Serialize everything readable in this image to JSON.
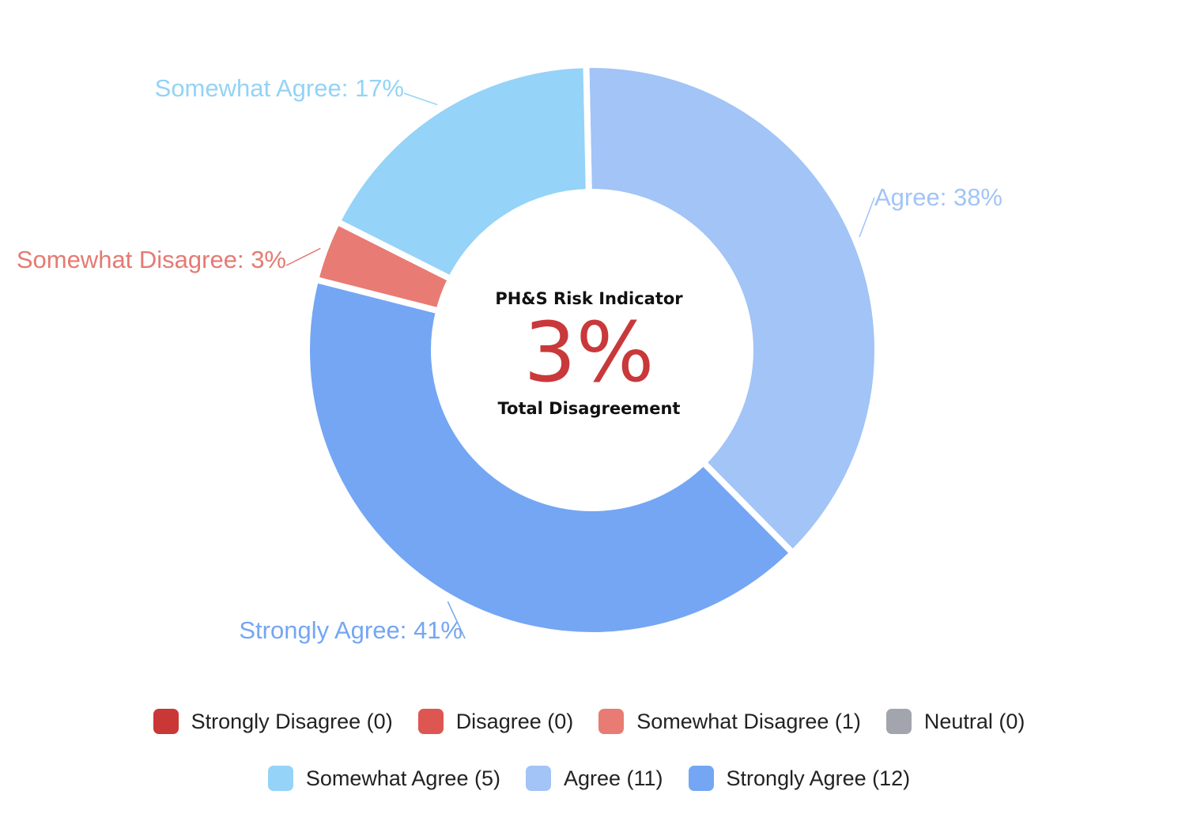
{
  "chart_data": {
    "type": "pie",
    "variant": "donut",
    "title": "",
    "categories": [
      "Strongly Disagree",
      "Disagree",
      "Somewhat Disagree",
      "Neutral",
      "Somewhat Agree",
      "Agree",
      "Strongly Agree"
    ],
    "values": [
      0,
      0,
      1,
      0,
      5,
      11,
      12
    ],
    "percent_labels": [
      {
        "category": "Agree",
        "text": "Agree: 38%",
        "color": "#a2c4f5"
      },
      {
        "category": "Strongly Agree",
        "text": "Strongly Agree: 41%",
        "color": "#74a6f3"
      },
      {
        "category": "Somewhat Disagree",
        "text": "Somewhat Disagree: 3%",
        "color": "#e57a73"
      },
      {
        "category": "Somewhat Agree",
        "text": "Somewhat Agree: 17%",
        "color": "#93d3f7"
      }
    ],
    "colors": {
      "Strongly Disagree": "#c93836",
      "Disagree": "#dd5652",
      "Somewhat Disagree": "#e87b73",
      "Neutral": "#a2a5ad",
      "Somewhat Agree": "#95d3f8",
      "Agree": "#a2c4f6",
      "Strongly Agree": "#74a6f4"
    },
    "legend": {
      "position": "bottom",
      "items": [
        {
          "label": "Strongly Disagree (0)",
          "color": "#c93836"
        },
        {
          "label": "Disagree (0)",
          "color": "#dd5652"
        },
        {
          "label": "Somewhat Disagree (1)",
          "color": "#e87b73"
        },
        {
          "label": "Neutral (0)",
          "color": "#a2a5ad"
        },
        {
          "label": "Somewhat Agree (5)",
          "color": "#95d3f8"
        },
        {
          "label": "Agree (11)",
          "color": "#a2c4f6"
        },
        {
          "label": "Strongly Agree (12)",
          "color": "#74a6f4"
        }
      ]
    }
  },
  "center": {
    "title": "PH&S Risk Indicator",
    "value": "3%",
    "caption": "Total Disagreement",
    "value_color": "#c9383a"
  }
}
